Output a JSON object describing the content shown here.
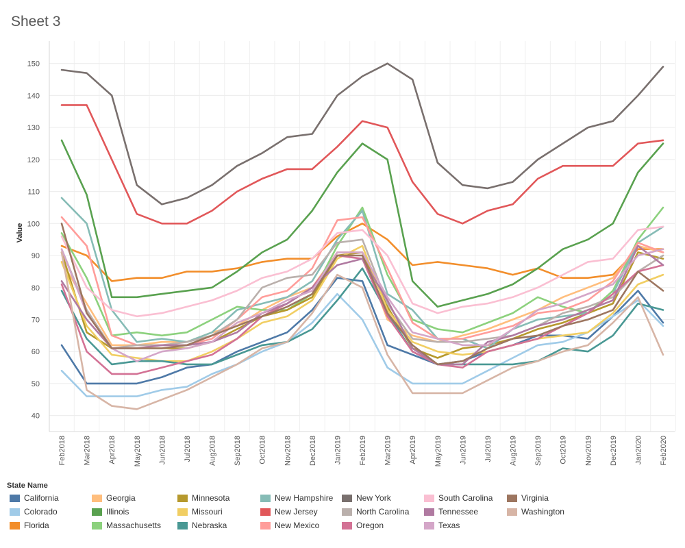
{
  "sheet": {
    "title": "Sheet 3"
  },
  "legend": {
    "title": "State Name"
  },
  "chart_data": {
    "type": "line",
    "title": "",
    "xlabel": "",
    "ylabel": "Value",
    "ylim": [
      35,
      157
    ],
    "yticks": [
      40,
      50,
      60,
      70,
      80,
      90,
      100,
      110,
      120,
      130,
      140,
      150
    ],
    "grid": true,
    "legend_position": "bottom",
    "x": [
      "Feb2018",
      "Mar2018",
      "Apr2018",
      "May2018",
      "Jun2018",
      "Jul2018",
      "Aug2018",
      "Sep2018",
      "Oct2018",
      "Nov2018",
      "Dec2018",
      "Jan2019",
      "Feb2019",
      "Mar2019",
      "Apr2019",
      "May2019",
      "Jun2019",
      "Jul2019",
      "Aug2019",
      "Sep2019",
      "Oct2019",
      "Nov2019",
      "Dec2019",
      "Jan2020",
      "Feb2020"
    ],
    "series": [
      {
        "name": "California",
        "color": "#4e79a7",
        "values": [
          62,
          50,
          50,
          50,
          52,
          55,
          56,
          60,
          63,
          66,
          73,
          83,
          82,
          62,
          59,
          56,
          57,
          60,
          62,
          65,
          65,
          64,
          71,
          79,
          69
        ]
      },
      {
        "name": "Colorado",
        "color": "#a0cbe8",
        "values": [
          54,
          46,
          46,
          46,
          48,
          49,
          53,
          56,
          60,
          63,
          69,
          78,
          70,
          55,
          50,
          50,
          50,
          54,
          58,
          62,
          63,
          66,
          71,
          76,
          68
        ]
      },
      {
        "name": "Florida",
        "color": "#f28e2b",
        "values": [
          93,
          90,
          82,
          83,
          83,
          85,
          85,
          86,
          88,
          89,
          89,
          96,
          100,
          95,
          87,
          88,
          87,
          86,
          84,
          86,
          83,
          83,
          84,
          92,
          92
        ]
      },
      {
        "name": "Georgia",
        "color": "#ffbe7d",
        "values": [
          88,
          75,
          62,
          62,
          63,
          63,
          66,
          68,
          73,
          77,
          80,
          91,
          91,
          70,
          65,
          63,
          65,
          67,
          70,
          73,
          77,
          80,
          83,
          93,
          91
        ]
      },
      {
        "name": "Illinois",
        "color": "#59a14f",
        "values": [
          126,
          109,
          77,
          77,
          78,
          79,
          80,
          85,
          91,
          95,
          104,
          116,
          125,
          120,
          82,
          74,
          76,
          78,
          81,
          86,
          92,
          95,
          100,
          116,
          125
        ]
      },
      {
        "name": "Massachusetts",
        "color": "#8cd17d",
        "values": [
          97,
          83,
          65,
          66,
          65,
          66,
          70,
          74,
          73,
          73,
          78,
          93,
          105,
          84,
          70,
          67,
          66,
          69,
          72,
          77,
          74,
          72,
          79,
          95,
          105
        ]
      },
      {
        "name": "Minnesota",
        "color": "#b6992d",
        "values": [
          91,
          66,
          61,
          61,
          61,
          61,
          63,
          67,
          71,
          73,
          77,
          90,
          91,
          74,
          61,
          58,
          61,
          62,
          64,
          67,
          69,
          72,
          75,
          91,
          89
        ]
      },
      {
        "name": "Missouri",
        "color": "#f1ce63",
        "values": [
          88,
          68,
          59,
          58,
          57,
          57,
          60,
          64,
          69,
          71,
          76,
          89,
          93,
          73,
          63,
          60,
          59,
          60,
          62,
          64,
          65,
          66,
          72,
          81,
          84
        ]
      },
      {
        "name": "Nebraska",
        "color": "#499894",
        "values": [
          79,
          64,
          56,
          57,
          57,
          56,
          56,
          59,
          62,
          63,
          67,
          76,
          86,
          72,
          60,
          56,
          56,
          56,
          56,
          57,
          61,
          60,
          65,
          75,
          73
        ]
      },
      {
        "name": "New Hampshire",
        "color": "#86bcb6",
        "values": [
          108,
          100,
          73,
          63,
          64,
          63,
          66,
          73,
          75,
          77,
          82,
          95,
          104,
          78,
          73,
          64,
          64,
          61,
          67,
          70,
          71,
          72,
          78,
          94,
          99
        ]
      },
      {
        "name": "New Jersey",
        "color": "#e15759",
        "values": [
          137,
          137,
          120,
          103,
          100,
          100,
          104,
          110,
          114,
          117,
          117,
          124,
          132,
          130,
          113,
          103,
          100,
          104,
          106,
          114,
          118,
          118,
          118,
          125,
          126
        ]
      },
      {
        "name": "New Mexico",
        "color": "#ff9d9a",
        "values": [
          102,
          93,
          65,
          62,
          62,
          62,
          64,
          70,
          77,
          79,
          86,
          101,
          102,
          86,
          69,
          64,
          64,
          66,
          68,
          72,
          73,
          76,
          82,
          94,
          91
        ]
      },
      {
        "name": "New York",
        "color": "#79706e",
        "values": [
          148,
          147,
          140,
          112,
          106,
          108,
          112,
          118,
          122,
          127,
          128,
          140,
          146,
          150,
          145,
          119,
          112,
          111,
          113,
          120,
          125,
          130,
          132,
          140,
          149
        ]
      },
      {
        "name": "North Carolina",
        "color": "#bab0ac",
        "values": [
          92,
          73,
          61,
          62,
          62,
          63,
          65,
          70,
          80,
          83,
          84,
          94,
          95,
          75,
          64,
          63,
          63,
          64,
          65,
          68,
          72,
          74,
          77,
          85,
          90
        ]
      },
      {
        "name": "Oregon",
        "color": "#d37295",
        "values": [
          81,
          60,
          53,
          53,
          55,
          57,
          59,
          64,
          71,
          75,
          80,
          90,
          89,
          71,
          60,
          56,
          55,
          60,
          62,
          64,
          68,
          72,
          78,
          85,
          87
        ]
      },
      {
        "name": "South Carolina",
        "color": "#fabfd2",
        "values": [
          96,
          80,
          73,
          71,
          72,
          74,
          76,
          79,
          83,
          85,
          89,
          97,
          98,
          90,
          75,
          72,
          74,
          75,
          77,
          80,
          84,
          88,
          89,
          98,
          99
        ]
      },
      {
        "name": "Tennessee",
        "color": "#b07aa1",
        "values": [
          82,
          70,
          61,
          61,
          62,
          62,
          63,
          66,
          72,
          75,
          80,
          87,
          89,
          76,
          61,
          56,
          56,
          63,
          65,
          68,
          70,
          73,
          76,
          93,
          87
        ]
      },
      {
        "name": "Texas",
        "color": "#d4a6c8",
        "values": [
          92,
          72,
          61,
          57,
          60,
          61,
          63,
          69,
          72,
          76,
          79,
          91,
          91,
          77,
          66,
          64,
          62,
          62,
          67,
          73,
          75,
          78,
          81,
          90,
          92
        ]
      },
      {
        "name": "Virginia",
        "color": "#9d7660",
        "values": [
          100,
          72,
          61,
          61,
          61,
          62,
          65,
          68,
          71,
          74,
          78,
          90,
          90,
          72,
          62,
          56,
          57,
          61,
          64,
          65,
          68,
          70,
          73,
          85,
          79
        ]
      },
      {
        "name": "Washington",
        "color": "#d7b5a6",
        "values": [
          91,
          48,
          43,
          42,
          45,
          48,
          52,
          56,
          61,
          63,
          72,
          84,
          80,
          59,
          47,
          47,
          47,
          51,
          55,
          57,
          60,
          62,
          69,
          77,
          59
        ]
      }
    ]
  }
}
